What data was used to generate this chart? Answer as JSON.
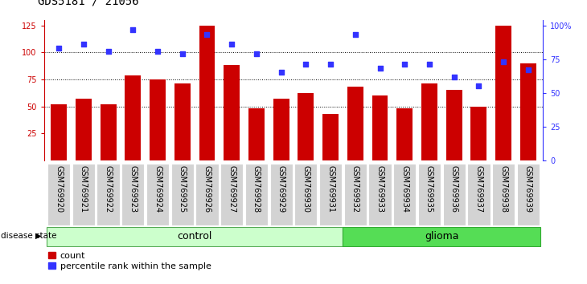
{
  "title": "GDS5181 / 21056",
  "samples": [
    "GSM769920",
    "GSM769921",
    "GSM769922",
    "GSM769923",
    "GSM769924",
    "GSM769925",
    "GSM769926",
    "GSM769927",
    "GSM769928",
    "GSM769929",
    "GSM769930",
    "GSM769931",
    "GSM769932",
    "GSM769933",
    "GSM769934",
    "GSM769935",
    "GSM769936",
    "GSM769937",
    "GSM769938",
    "GSM769939"
  ],
  "counts": [
    52,
    57,
    52,
    79,
    75,
    71,
    125,
    88,
    48,
    57,
    62,
    43,
    68,
    60,
    48,
    71,
    65,
    50,
    125,
    90
  ],
  "percentile_ranks": [
    83,
    86,
    81,
    97,
    81,
    79,
    93,
    86,
    79,
    65,
    71,
    71,
    93,
    68,
    71,
    71,
    62,
    55,
    73,
    67
  ],
  "bar_color": "#cc0000",
  "dot_color": "#3333ff",
  "left_yticks": [
    25,
    50,
    75,
    100,
    125
  ],
  "right_ytick_pct": [
    0,
    25,
    50,
    75,
    100
  ],
  "right_yticklabels": [
    "0",
    "25",
    "50",
    "75",
    "100%"
  ],
  "ylim": [
    0,
    130
  ],
  "grid_values": [
    50,
    75,
    100
  ],
  "control_color": "#ccffcc",
  "glioma_color": "#55dd55",
  "control_n": 12,
  "glioma_n": 8,
  "title_fontsize": 10,
  "tick_fontsize": 7,
  "label_fontsize": 7,
  "legend_fontsize": 8,
  "ds_fontsize": 9,
  "bar_width": 0.65
}
